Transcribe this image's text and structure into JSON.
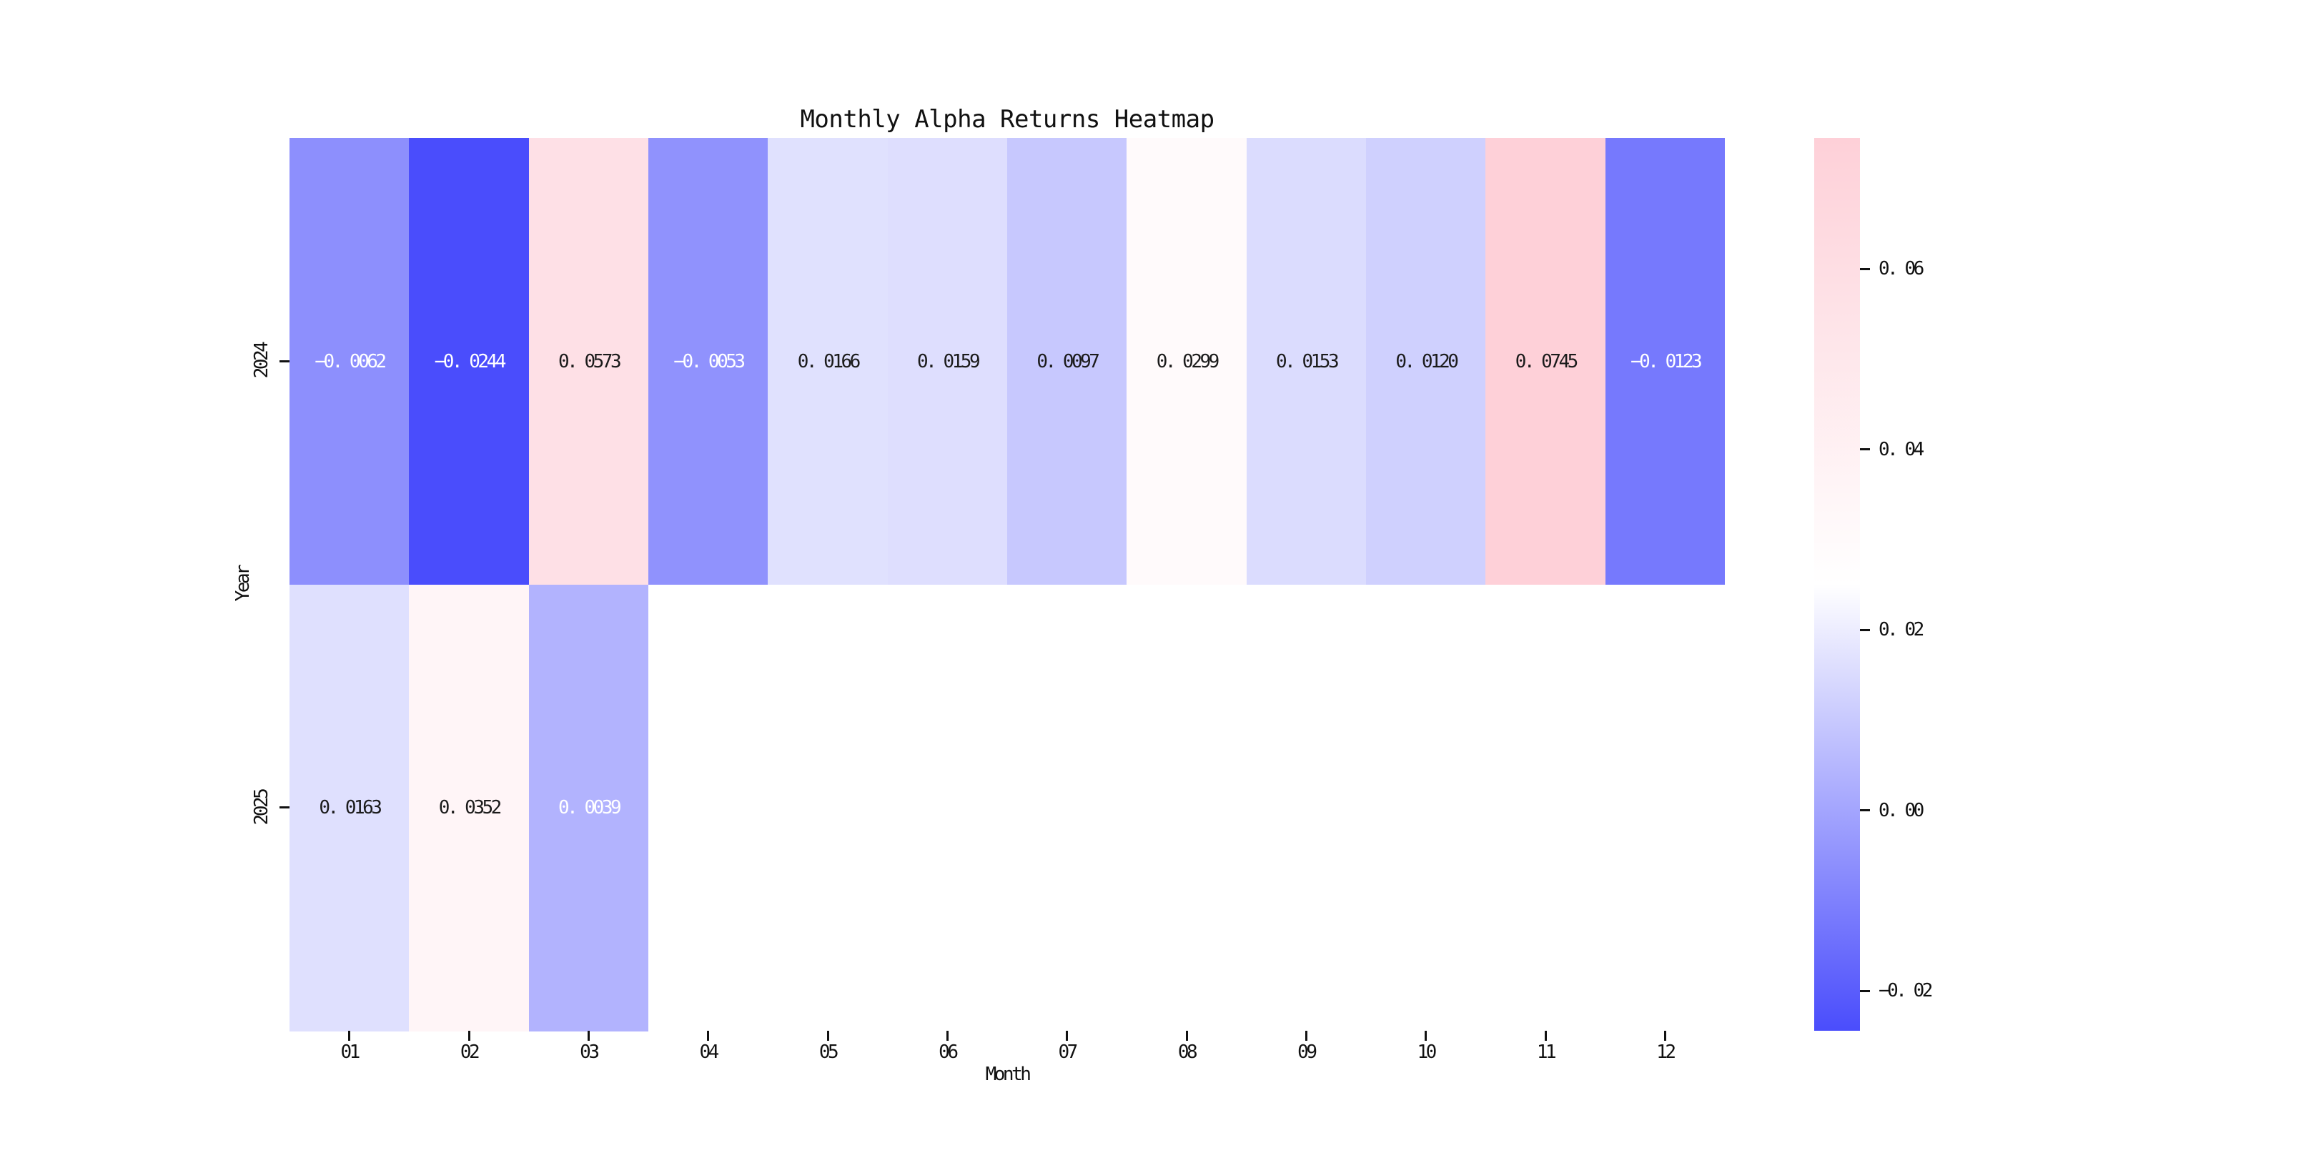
{
  "title": "Monthly Alpha Returns Heatmap",
  "chart_data": {
    "type": "heatmap",
    "title": "Monthly Alpha Returns Heatmap",
    "xlabel": "Month",
    "ylabel": "Year",
    "columns": [
      "01",
      "02",
      "03",
      "04",
      "05",
      "06",
      "07",
      "08",
      "09",
      "10",
      "11",
      "12"
    ],
    "rows": [
      "2024",
      "2025"
    ],
    "series": [
      {
        "name": "2024",
        "values": [
          -0.0062,
          -0.0244,
          0.0573,
          -0.0053,
          0.0166,
          0.0159,
          0.0097,
          0.0299,
          0.0153,
          0.012,
          0.0745,
          -0.0123
        ]
      },
      {
        "name": "2025",
        "values": [
          0.0163,
          0.0352,
          0.0039
        ]
      }
    ],
    "cell_labels": [
      [
        "−0. 0062",
        "−0. 0244",
        "0. 0573",
        "−0. 0053",
        "0. 0166",
        "0. 0159",
        "0. 0097",
        "0. 0299",
        "0. 0153",
        "0. 0120",
        "0. 0745",
        "−0. 0123"
      ],
      [
        "0. 0163",
        "0. 0352",
        "0. 0039"
      ]
    ],
    "colorbar": {
      "tick_labels": [
        "0. 06",
        "0. 04",
        "0. 02",
        "0. 00",
        "−0. 02"
      ],
      "tick_values": [
        0.06,
        0.04,
        0.02,
        0.0,
        -0.02
      ],
      "vmin": -0.0244,
      "vmax": 0.0745
    },
    "colors": {
      "negative_end": "#4a4dfc",
      "center": "#ffffff",
      "positive_end": "#fed0d8",
      "annotation_dark": "#1b1b1b",
      "annotation_light": "#ffffff",
      "axis_text": "#111111"
    },
    "layout_hints": {
      "grid": false,
      "colorbar_position": "right",
      "empty_cells_background": "#ffffff"
    }
  }
}
